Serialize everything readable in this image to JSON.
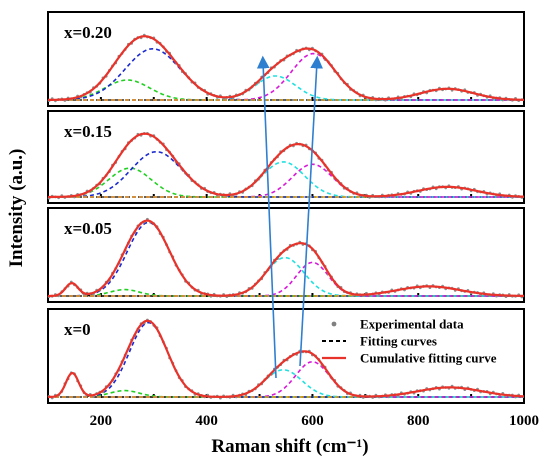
{
  "chart_data": {
    "type": "line",
    "xlabel": "Raman shift (cm⁻¹)",
    "ylabel": "Intensity (a.u.)",
    "xlim": [
      100,
      1000
    ],
    "x_ticks": [
      200,
      400,
      600,
      800,
      1000
    ],
    "x_tick_labels": [
      "200",
      "400",
      "600",
      "800",
      "1000"
    ],
    "legend": {
      "placement": "bottom-right panel, top-right",
      "entries": [
        {
          "label": "Experimental data",
          "style": "grey dots",
          "color": "#808080"
        },
        {
          "label": "Fitting curves",
          "style": "black dashed",
          "color": "#000000"
        },
        {
          "label": "Cumulative fitting curve",
          "style": "red solid",
          "color": "#e8332b"
        }
      ]
    },
    "arrows_color": "#2f7fd0",
    "peak_colors": {
      "p150": "#111111",
      "p250": "#22d022",
      "p300": "#1a2ad0",
      "p550": "#22e0e0",
      "p600": "#d81ad8",
      "p850": "#e09a10"
    },
    "panels": [
      {
        "label": "x=0.20",
        "peaks": [
          {
            "id": "p250",
            "center": 250,
            "height": 0.25,
            "width": 42
          },
          {
            "id": "p300",
            "center": 298,
            "height": 0.64,
            "width": 52
          },
          {
            "id": "p550",
            "center": 530,
            "height": 0.3,
            "width": 38
          },
          {
            "id": "p600",
            "center": 602,
            "height": 0.58,
            "width": 42
          },
          {
            "id": "p850",
            "center": 855,
            "height": 0.14,
            "width": 50
          }
        ]
      },
      {
        "label": "x=0.15",
        "peaks": [
          {
            "id": "p250",
            "center": 255,
            "height": 0.37,
            "width": 40
          },
          {
            "id": "p300",
            "center": 305,
            "height": 0.58,
            "width": 48
          },
          {
            "id": "p550",
            "center": 545,
            "height": 0.45,
            "width": 40
          },
          {
            "id": "p600",
            "center": 600,
            "height": 0.42,
            "width": 38
          },
          {
            "id": "p850",
            "center": 855,
            "height": 0.13,
            "width": 55
          }
        ]
      },
      {
        "label": "x=0.05",
        "peaks": [
          {
            "id": "p150",
            "center": 145,
            "height": 0.16,
            "width": 12
          },
          {
            "id": "p250",
            "center": 245,
            "height": 0.08,
            "width": 28
          },
          {
            "id": "p300",
            "center": 290,
            "height": 0.92,
            "width": 40
          },
          {
            "id": "p550",
            "center": 548,
            "height": 0.48,
            "width": 36
          },
          {
            "id": "p600",
            "center": 600,
            "height": 0.42,
            "width": 30
          },
          {
            "id": "p850",
            "center": 820,
            "height": 0.12,
            "width": 60
          }
        ]
      },
      {
        "label": "x=0",
        "peaks": [
          {
            "id": "p150",
            "center": 146,
            "height": 0.3,
            "width": 12
          },
          {
            "id": "p250",
            "center": 245,
            "height": 0.08,
            "width": 28
          },
          {
            "id": "p300",
            "center": 290,
            "height": 0.93,
            "width": 36
          },
          {
            "id": "p550",
            "center": 545,
            "height": 0.34,
            "width": 35
          },
          {
            "id": "p600",
            "center": 600,
            "height": 0.44,
            "width": 32
          },
          {
            "id": "p850",
            "center": 860,
            "height": 0.12,
            "width": 60
          }
        ]
      }
    ]
  }
}
